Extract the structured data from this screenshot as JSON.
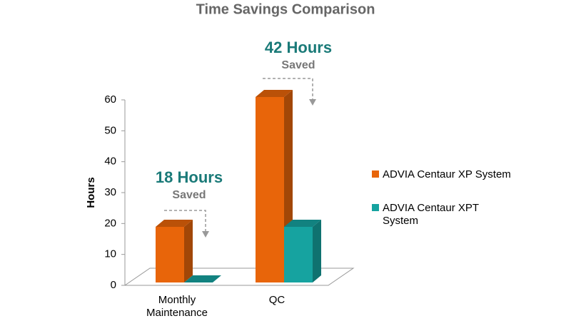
{
  "chart_data": {
    "type": "bar3d",
    "title": "Time Savings Comparison",
    "y_label": "Hours",
    "categories": [
      "Monthly Maintenance",
      "QC"
    ],
    "series": [
      {
        "name": "ADVIA Centaur XP System",
        "color": "#e8650a",
        "values": [
          18,
          60
        ]
      },
      {
        "name": "ADVIA Centaur XPT System",
        "color": "#16a3a0",
        "values": [
          0,
          18
        ]
      }
    ],
    "ylim": [
      0,
      60
    ],
    "yticks": [
      0,
      10,
      20,
      30,
      40,
      50,
      60
    ],
    "annotations": [
      {
        "label": "18 Hours",
        "sublabel": "Saved"
      },
      {
        "label": "42 Hours",
        "sublabel": "Saved"
      }
    ],
    "legend": "right"
  }
}
